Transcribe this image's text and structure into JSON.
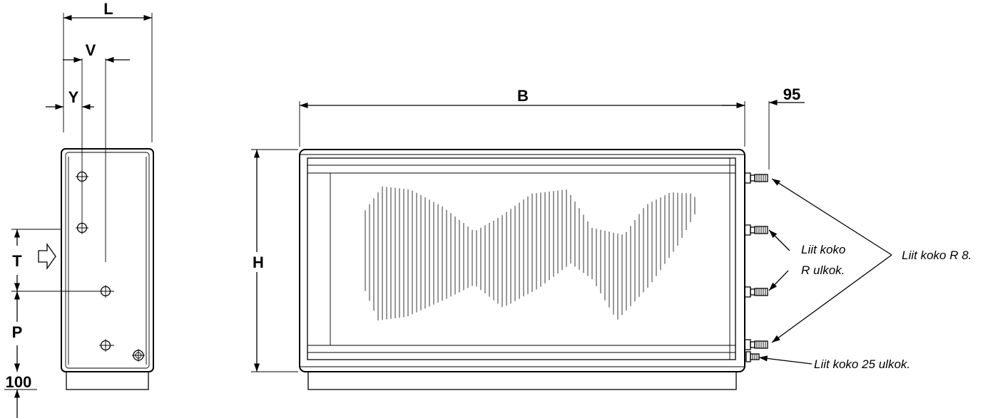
{
  "side_view": {
    "label_L": "L",
    "label_V": "V",
    "label_Y": "Y",
    "label_T": "T",
    "label_P": "P",
    "label_100": "100"
  },
  "front_view": {
    "label_B": "B",
    "label_H": "H",
    "label_95": "95"
  },
  "notes": {
    "connection_R_line1": "Liit koko",
    "connection_R_line2": "R ulkok.",
    "connection_R8": "Liit koko R 8.",
    "connection_25": "Liit koko 25 ulkok."
  }
}
